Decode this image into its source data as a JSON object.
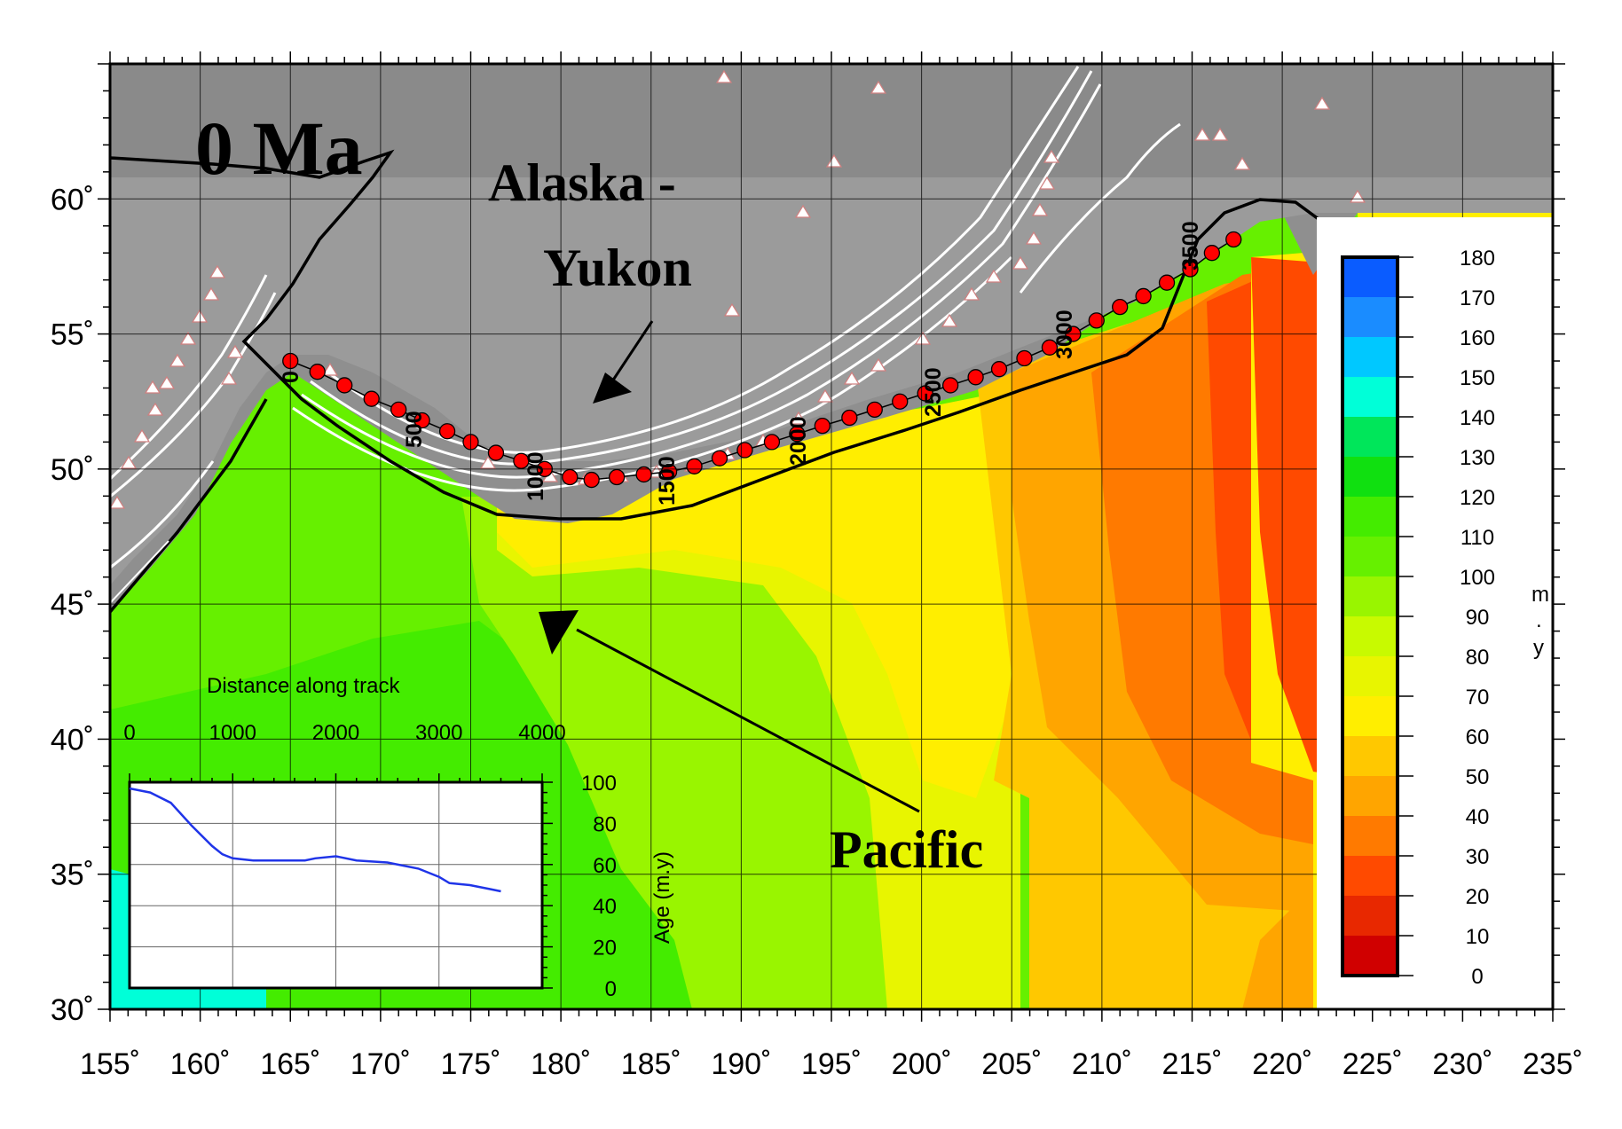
{
  "map": {
    "age_label": "0 Ma",
    "region_label_line1": "Alaska -",
    "region_label_line2": "Yukon",
    "ocean_label": "Pacific",
    "lon_ticks": [
      "155˚",
      "160˚",
      "165˚",
      "170˚",
      "175˚",
      "180˚",
      "185˚",
      "190˚",
      "195˚",
      "200˚",
      "205˚",
      "210˚",
      "215˚",
      "220˚",
      "225˚",
      "230˚",
      "235˚"
    ],
    "lat_ticks": [
      "60˚",
      "55˚",
      "50˚",
      "45˚",
      "40˚",
      "35˚",
      "30˚"
    ],
    "lon_range": [
      155,
      235
    ],
    "lat_range": [
      30,
      65
    ],
    "track_distance_labels": [
      "0",
      "500",
      "1000",
      "1500",
      "2000",
      "2500",
      "3000",
      "3500"
    ],
    "colors": {
      "land": "#8f8f8f",
      "shelf": "#9b9b9b",
      "track_point": "#ff0000",
      "volcano": "#ffffff",
      "volcano_edge": "#d08080"
    }
  },
  "colorbar": {
    "unit_label": [
      "m",
      ".",
      "y"
    ],
    "tick_labels": [
      "180",
      "170",
      "160",
      "150",
      "140",
      "130",
      "120",
      "110",
      "100",
      "90",
      "80",
      "70",
      "60",
      "50",
      "40",
      "30",
      "20",
      "10",
      "0"
    ],
    "colors": [
      "#0a5cff",
      "#1a8cff",
      "#00c8ff",
      "#00ffd8",
      "#00e65a",
      "#10e010",
      "#44ec00",
      "#66f000",
      "#99f500",
      "#c8fa00",
      "#e8f500",
      "#ffee00",
      "#ffc800",
      "#ffa500",
      "#ff7a00",
      "#ff4a00",
      "#e82800",
      "#d00000"
    ]
  },
  "inset": {
    "title": "Distance along track",
    "x_ticks": [
      "0",
      "1000",
      "2000",
      "3000",
      "4000"
    ],
    "y_ticks": [
      "100",
      "80",
      "60",
      "40",
      "20",
      "0"
    ],
    "y_label": "Age (m.y)"
  },
  "chart_data": {
    "type": "line",
    "xlabel": "Distance along track",
    "ylabel": "Age (m.y)",
    "xlim": [
      0,
      4000
    ],
    "ylim": [
      0,
      100
    ],
    "grid": true,
    "x": [
      0,
      200,
      400,
      600,
      800,
      900,
      1000,
      1200,
      1500,
      1700,
      1800,
      2000,
      2200,
      2500,
      2800,
      3000,
      3100,
      3300,
      3500,
      3600
    ],
    "y": [
      97,
      95,
      90,
      79,
      69,
      65,
      63,
      62,
      62,
      62,
      63,
      64,
      62,
      61,
      58,
      54,
      51,
      50,
      48,
      47
    ]
  }
}
